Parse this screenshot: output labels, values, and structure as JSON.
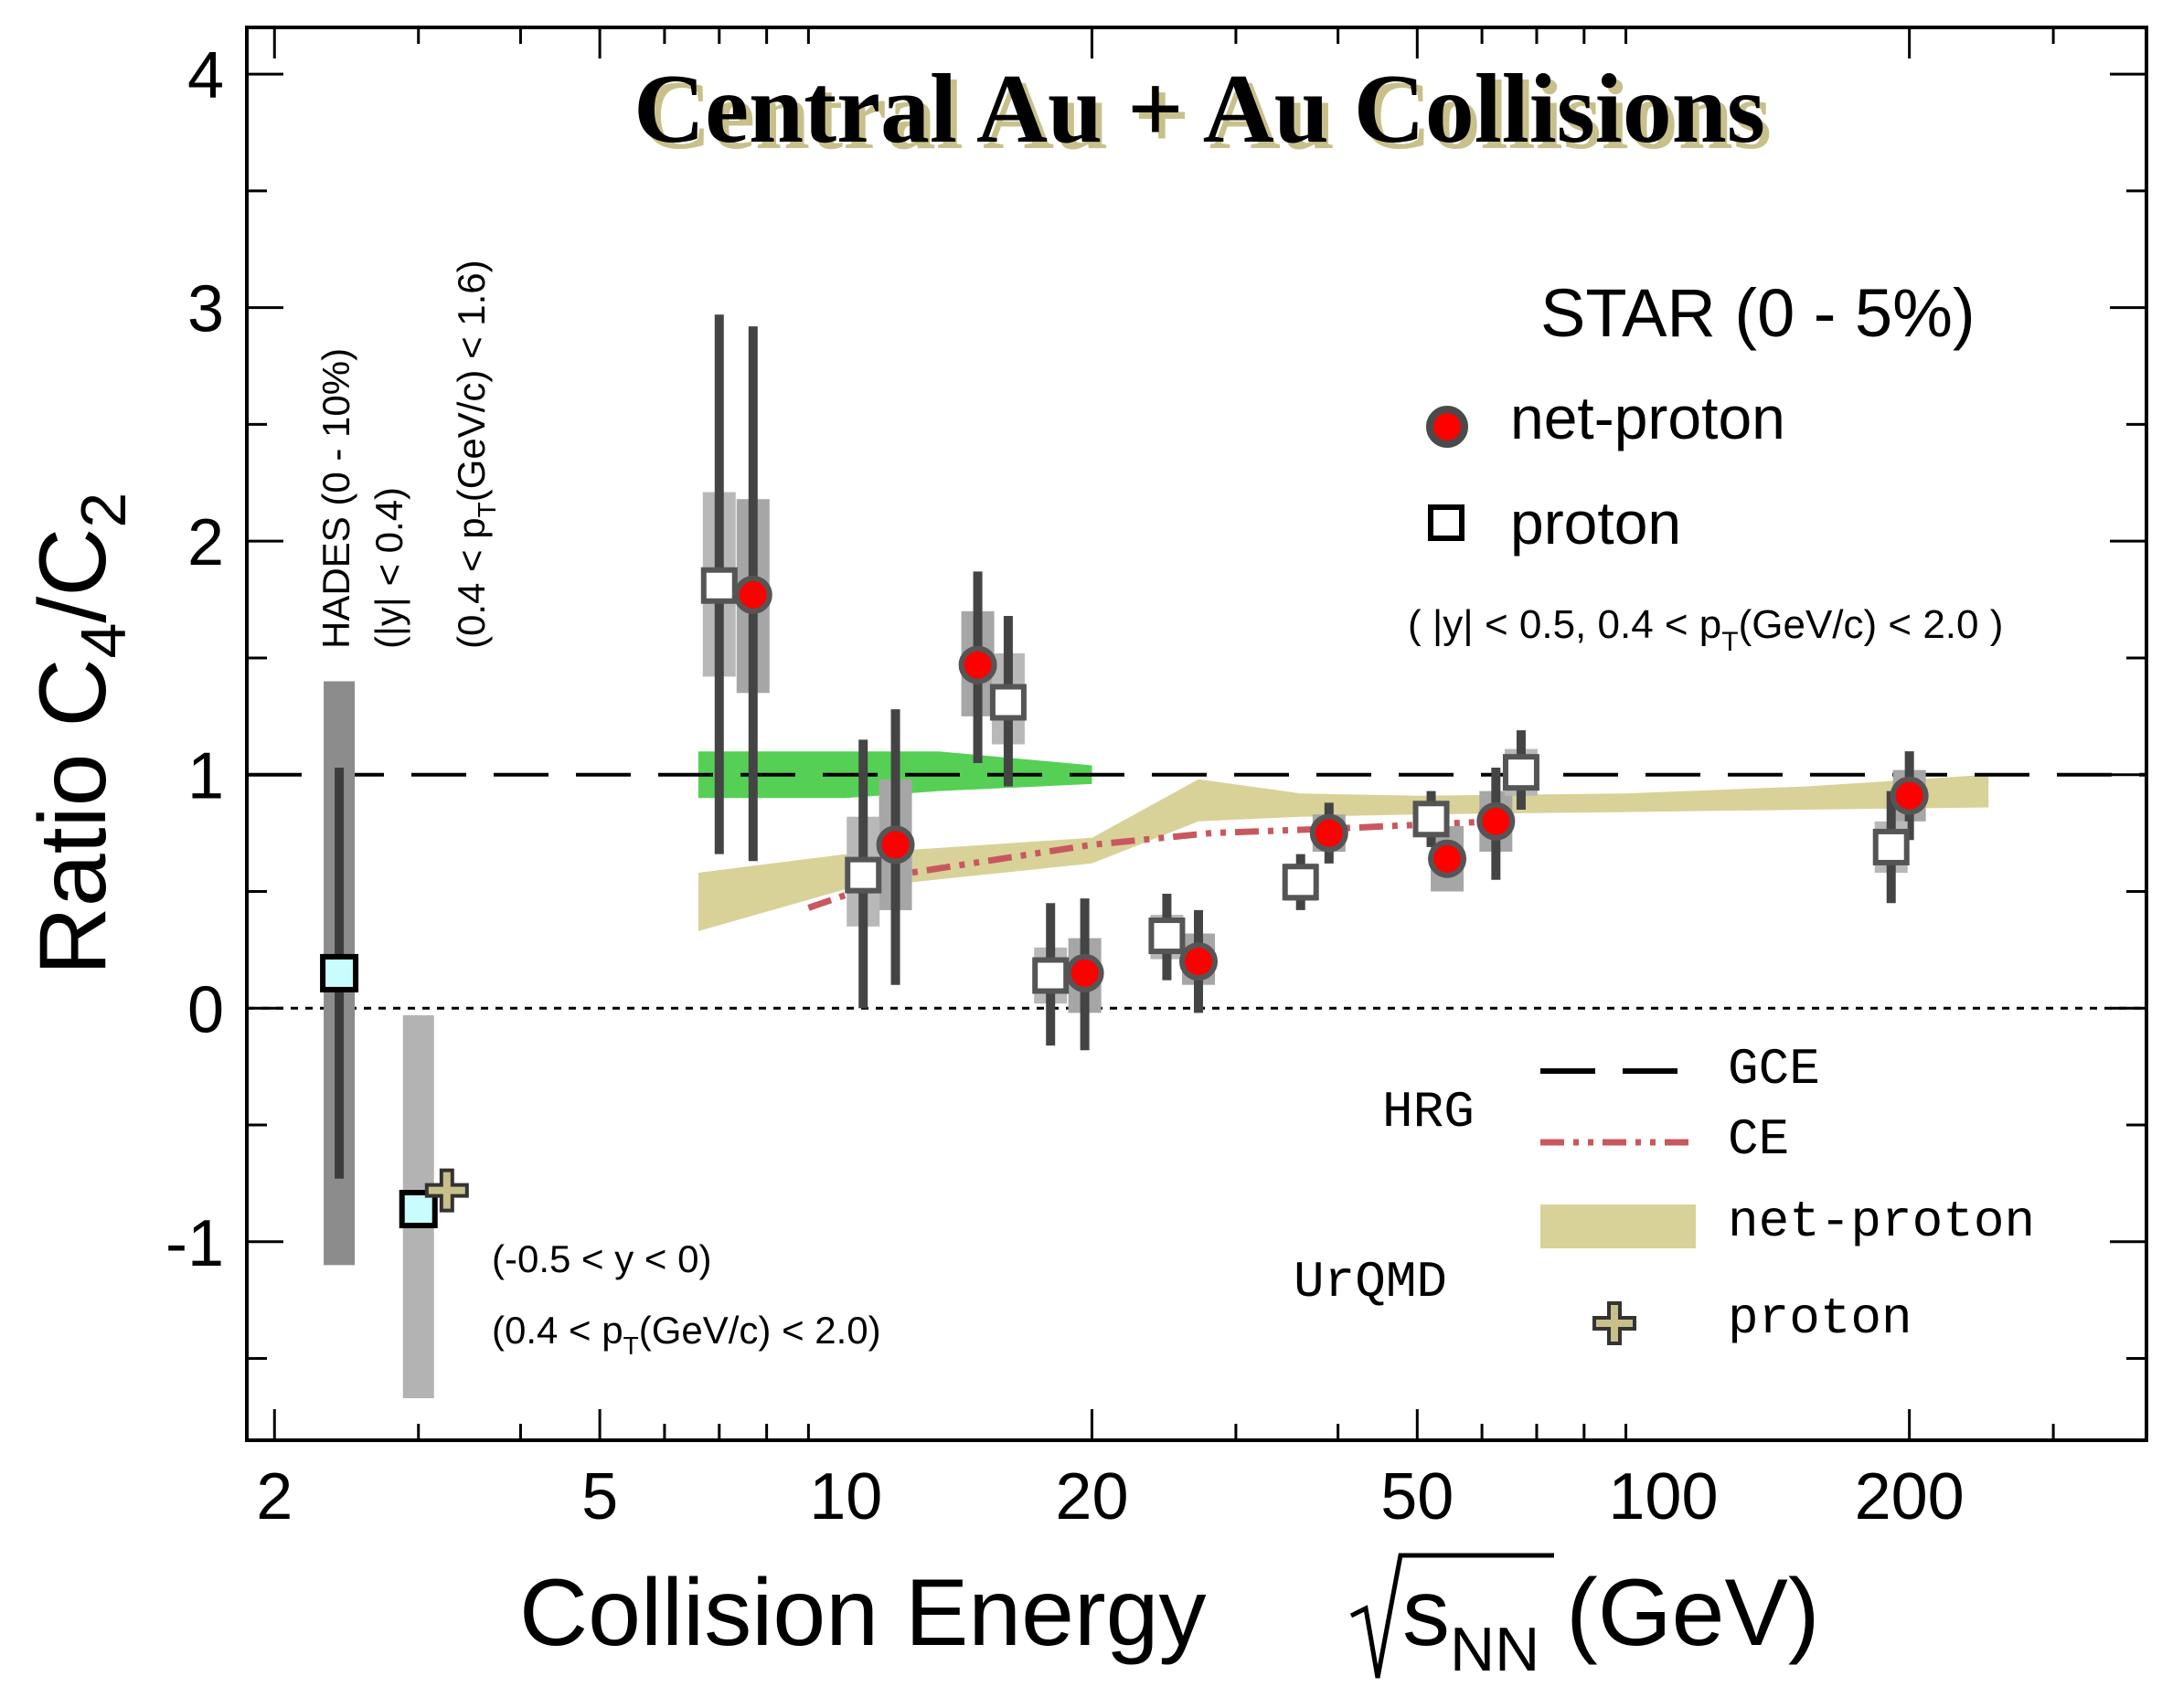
{
  "chart_data": {
    "type": "scatter",
    "title": "Central Au + Au Collisions",
    "xlabel": {
      "main": "Collision Energy ",
      "root": "s",
      "sub": "NN",
      "unit": " (GeV)"
    },
    "ylabel": {
      "ratio": "Ratio C",
      "s1": "4",
      "slash": "/C",
      "s2": "2"
    },
    "x_scale": "log",
    "xlim": [
      1.85,
      390
    ],
    "ylim": [
      -1.85,
      4.2
    ],
    "x_ticks": [
      {
        "v": 2,
        "label": "2"
      },
      {
        "v": 5,
        "label": "5"
      },
      {
        "v": 10,
        "label": "10"
      },
      {
        "v": 20,
        "label": "20"
      },
      {
        "v": 50,
        "label": "50"
      },
      {
        "v": 100,
        "label": "100"
      },
      {
        "v": 200,
        "label": "200"
      }
    ],
    "y_ticks": [
      {
        "v": -1,
        "label": "-1"
      },
      {
        "v": 0,
        "label": "0"
      },
      {
        "v": 1,
        "label": "1"
      },
      {
        "v": 2,
        "label": "2"
      },
      {
        "v": 3,
        "label": "3"
      },
      {
        "v": 4,
        "label": "4"
      }
    ],
    "series": [
      {
        "name": "net-proton",
        "marker": "circle",
        "color": "#ff0000",
        "points": [
          {
            "x": 7.7,
            "y": 1.77,
            "stat": [
              0.63,
              2.92
            ],
            "sys": [
              1.35,
              2.18
            ]
          },
          {
            "x": 11.5,
            "y": 0.7,
            "stat": [
              0.1,
              1.28
            ],
            "sys": [
              0.42,
              0.98
            ]
          },
          {
            "x": 14.5,
            "y": 1.47,
            "stat": [
              1.05,
              1.87
            ],
            "sys": [
              1.25,
              1.7
            ]
          },
          {
            "x": 19.6,
            "y": 0.15,
            "stat": [
              -0.18,
              0.47
            ],
            "sys": [
              -0.02,
              0.3
            ]
          },
          {
            "x": 27,
            "y": 0.2,
            "stat": [
              -0.02,
              0.42
            ],
            "sys": [
              0.1,
              0.32
            ]
          },
          {
            "x": 39,
            "y": 0.75,
            "stat": [
              0.62,
              0.88
            ],
            "sys": [
              0.67,
              0.83
            ]
          },
          {
            "x": 54.4,
            "y": 0.64,
            "stat": [
              0.57,
              0.72
            ],
            "sys": [
              0.5,
              0.78
            ]
          },
          {
            "x": 62.4,
            "y": 0.8,
            "stat": [
              0.55,
              1.03
            ],
            "sys": [
              0.67,
              0.93
            ]
          },
          {
            "x": 200,
            "y": 0.91,
            "stat": [
              0.72,
              1.1
            ],
            "sys": [
              0.8,
              1.02
            ]
          }
        ]
      },
      {
        "name": "proton",
        "marker": "square",
        "color": "#ffffff",
        "points": [
          {
            "x": 7.0,
            "y": 1.81,
            "stat": [
              0.66,
              2.97
            ],
            "sys": [
              1.42,
              2.21
            ]
          },
          {
            "x": 10.5,
            "y": 0.57,
            "stat": [
              0.0,
              1.15
            ],
            "sys": [
              0.35,
              0.82
            ]
          },
          {
            "x": 15.8,
            "y": 1.31,
            "stat": [
              0.95,
              1.68
            ],
            "sys": [
              1.13,
              1.52
            ]
          },
          {
            "x": 17.8,
            "y": 0.14,
            "stat": [
              -0.16,
              0.45
            ],
            "sys": [
              0.02,
              0.26
            ]
          },
          {
            "x": 24.7,
            "y": 0.31,
            "stat": [
              0.12,
              0.49
            ],
            "sys": [
              0.21,
              0.4
            ]
          },
          {
            "x": 36,
            "y": 0.54,
            "stat": [
              0.42,
              0.66
            ],
            "sys": [
              0.46,
              0.62
            ]
          },
          {
            "x": 52,
            "y": 0.81,
            "stat": [
              0.69,
              0.93
            ],
            "sys": [
              0.75,
              0.87
            ]
          },
          {
            "x": 67,
            "y": 1.01,
            "stat": [
              0.85,
              1.19
            ],
            "sys": [
              0.91,
              1.11
            ]
          },
          {
            "x": 190,
            "y": 0.69,
            "stat": [
              0.45,
              0.93
            ],
            "sys": [
              0.58,
              0.8
            ]
          }
        ]
      }
    ],
    "hades": {
      "point": {
        "x": 2.4,
        "y": 0.15,
        "stat": [
          -0.73,
          1.03
        ],
        "sys": [
          -1.1,
          1.4
        ]
      },
      "point2": {
        "x": 3.0,
        "y": -0.86,
        "sys": [
          -1.67,
          -0.03
        ]
      },
      "marker_color": "#c9fcfc"
    },
    "urqmd_proton": {
      "x": 3.25,
      "y": -0.78,
      "color": "#c8c08a"
    },
    "hrg_gce": {
      "y": 1.0
    },
    "hrg_ce": {
      "color": "#c8585e",
      "points": [
        [
          9,
          0.43
        ],
        [
          12,
          0.58
        ],
        [
          20,
          0.7
        ],
        [
          28,
          0.75
        ],
        [
          40,
          0.77
        ],
        [
          62,
          0.8
        ]
      ]
    },
    "urqmd_netproton_band": {
      "color": "#d8d299",
      "upper": [
        [
          6.6,
          0.58
        ],
        [
          10,
          0.66
        ],
        [
          20,
          0.73
        ],
        [
          27,
          0.98
        ],
        [
          36,
          0.92
        ],
        [
          50,
          0.91
        ],
        [
          90,
          0.92
        ],
        [
          150,
          0.95
        ],
        [
          250,
          1.0
        ]
      ],
      "lower": [
        [
          6.6,
          0.33
        ],
        [
          10,
          0.51
        ],
        [
          20,
          0.62
        ],
        [
          27,
          0.8
        ],
        [
          36,
          0.82
        ],
        [
          50,
          0.83
        ],
        [
          90,
          0.84
        ],
        [
          150,
          0.85
        ],
        [
          250,
          0.86
        ]
      ]
    },
    "green_band": {
      "color": "#55d055",
      "upper": [
        [
          6.6,
          1.1
        ],
        [
          10,
          1.1
        ],
        [
          13,
          1.1
        ],
        [
          20,
          1.04
        ]
      ],
      "lower": [
        [
          6.6,
          0.9
        ],
        [
          10,
          0.9
        ],
        [
          13,
          0.93
        ],
        [
          20,
          0.96
        ]
      ]
    }
  },
  "legend": {
    "header": "STAR (0 - 5%)",
    "netproton_label": "net-proton",
    "proton_label": "proton",
    "cut_prefix": "( |y| < 0.5,  0.4 < p",
    "cut_sub": "T",
    "cut_suffix": "(GeV/c) < 2.0 )",
    "hrg_label": "HRG",
    "gce_label": "GCE",
    "ce_label": "CE",
    "urqmd_label": "UrQMD",
    "urqmd_netproton_label": "net-proton",
    "urqmd_proton_label": "proton"
  },
  "annotations": {
    "hades_line1": "HADES (0 - 10%)",
    "hades_line2": "(|y| < 0.4)",
    "hades_line3_prefix": "(0.4 < p",
    "hades_line3_sub": "T",
    "hades_line3_suffix": "(GeV/c) < 1.6)",
    "hades2_line1": "(-0.5 < y < 0)",
    "hades2_line2_prefix": "(0.4 < p",
    "hades2_line2_sub": "T",
    "hades2_line2_suffix": "(GeV/c) < 2.0)"
  }
}
